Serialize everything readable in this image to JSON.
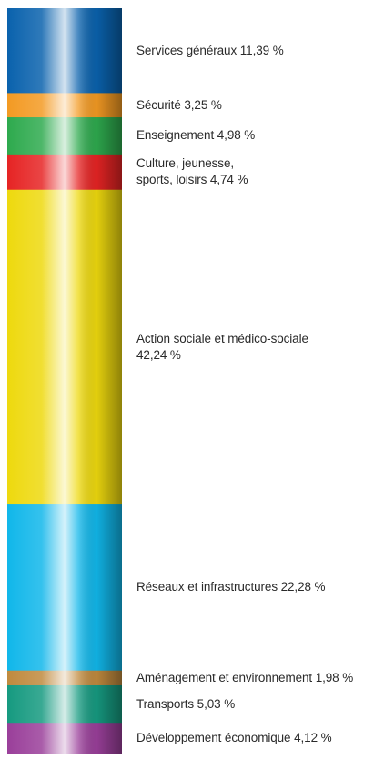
{
  "chart_data": {
    "type": "bar",
    "subtype": "stacked-100",
    "unit": "%",
    "segments": [
      {
        "label": "Services généraux 11,39 %",
        "value": 11.39,
        "color": "#0a62ad"
      },
      {
        "label": "Sécurité 3,25 %",
        "value": 3.25,
        "color": "#f39a23"
      },
      {
        "label": "Enseignement 4,98 %",
        "value": 4.98,
        "color": "#2eaa4e"
      },
      {
        "label": "Culture, jeunesse,\nsports, loisirs 4,74 %",
        "value": 4.74,
        "color": "#e62424"
      },
      {
        "label": "Action sociale et médico-sociale\n42,24 %",
        "value": 42.24,
        "color": "#eed90e"
      },
      {
        "label": "Réseaux et infrastructures 22,28 %",
        "value": 22.28,
        "color": "#11b7ea"
      },
      {
        "label": "Aménagement et environnement 1,98 %",
        "value": 1.98,
        "color": "#c08a3e"
      },
      {
        "label": "Transports 5,03 %",
        "value": 5.03,
        "color": "#169a80"
      },
      {
        "label": "Développement économique 4,12 %",
        "value": 4.12,
        "color": "#9a3f9a"
      }
    ]
  }
}
